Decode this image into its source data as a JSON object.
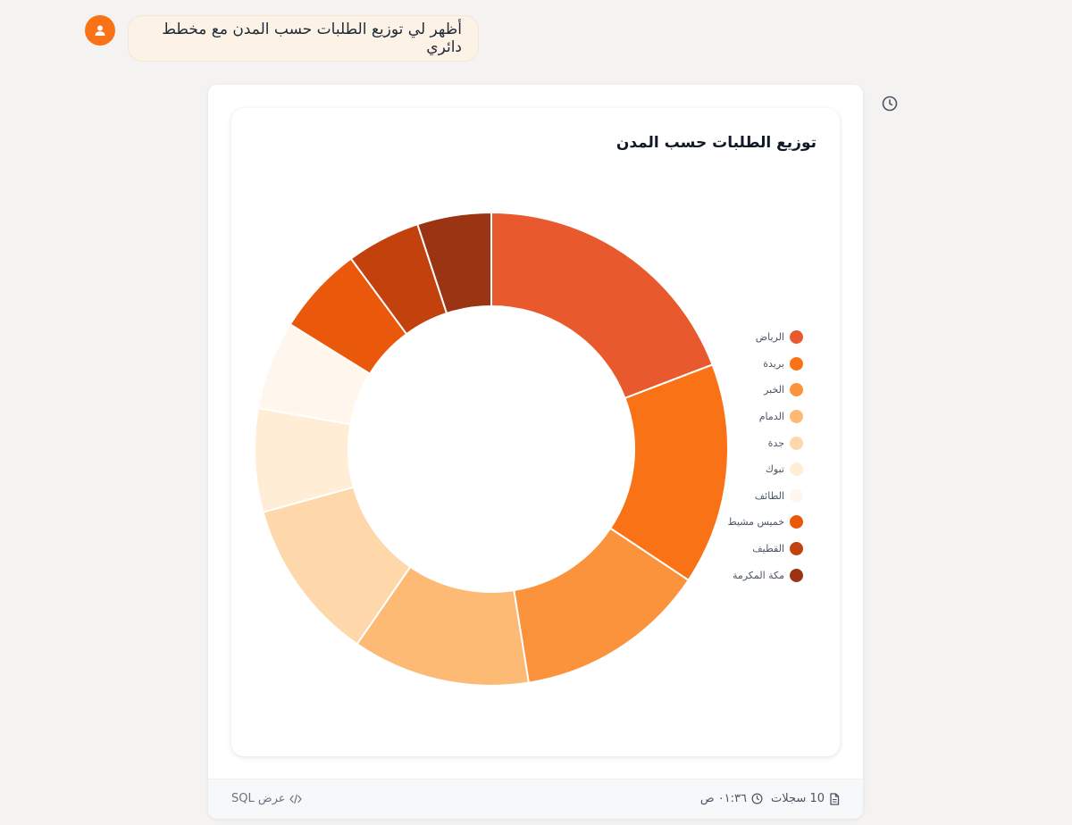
{
  "user_message": {
    "text": "أظهر لي توزيع الطلبات حسب المدن مع مخطط دائري"
  },
  "icons": {
    "avatar": "user-icon",
    "timestamp": "clock-icon",
    "records": "document-icon",
    "sql": "code-icon"
  },
  "chart_data": {
    "type": "pie",
    "donut": true,
    "title": "توزيع الطلبات حسب المدن",
    "legend_position": "right",
    "labels": [
      "الرياض",
      "بريدة",
      "الخبر",
      "الدمام",
      "جدة",
      "تبوك",
      "الطائف",
      "خميس مشيط",
      "القطيف",
      "مكة المكرمة"
    ],
    "values": [
      19,
      15,
      13,
      12,
      11,
      7,
      6,
      6,
      5,
      5
    ],
    "colors": [
      "#e85a2d",
      "#f97316",
      "#fb923c",
      "#fdba74",
      "#fed7aa",
      "#ffedd5",
      "#fff7ed",
      "#ea580c",
      "#c2410c",
      "#9a3412"
    ]
  },
  "footer": {
    "records_label": "10 سجلات",
    "time_label": "٠١:٣٦ ص",
    "sql_label": "عرض SQL"
  }
}
